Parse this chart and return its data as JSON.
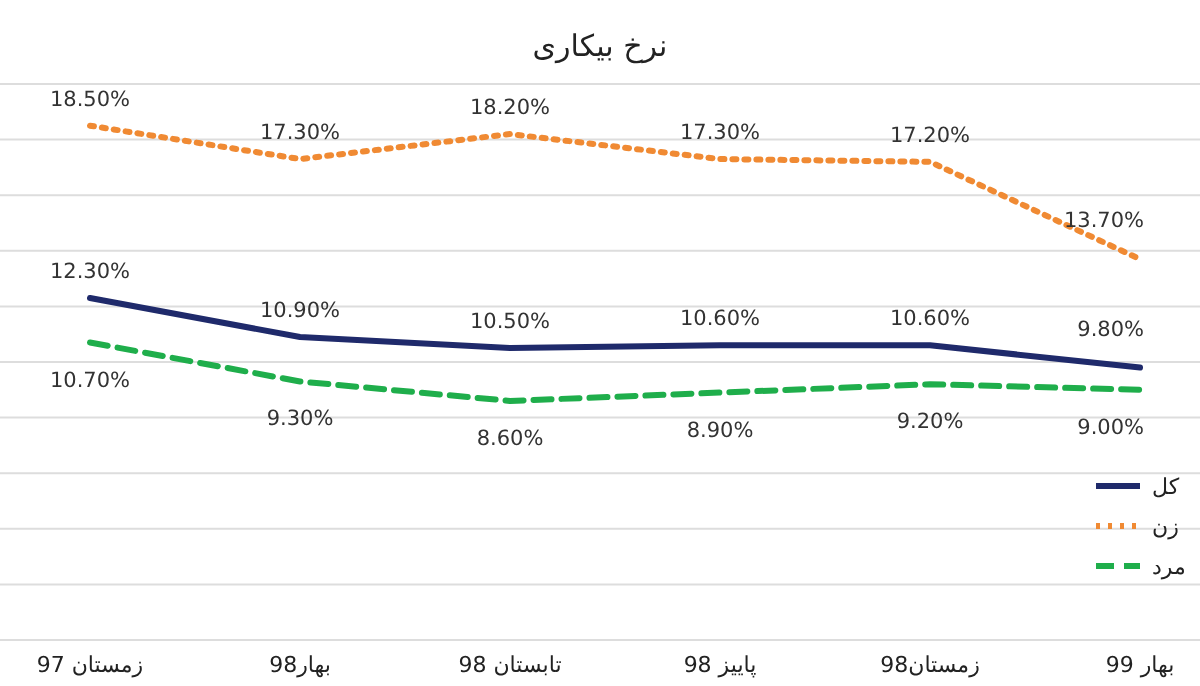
{
  "chart_data": {
    "type": "line",
    "title": "نرخ بیکاری",
    "categories": [
      "زمستان 97",
      "بهار98",
      "تابستان 98",
      "پاییز 98",
      "زمستان98",
      "بهار 99"
    ],
    "series": [
      {
        "name": "کل",
        "color": "#1f2a6b",
        "line_style": "solid",
        "values": [
          12.3,
          10.9,
          10.5,
          10.6,
          10.6,
          9.8
        ],
        "value_labels": [
          "12.30%",
          "10.90%",
          "10.50%",
          "10.60%",
          "10.60%",
          "9.80%"
        ]
      },
      {
        "name": "زن",
        "color": "#f08a33",
        "line_style": "dotted",
        "values": [
          18.5,
          17.3,
          18.2,
          17.3,
          17.2,
          13.7
        ],
        "value_labels": [
          "18.50%",
          "17.30%",
          "18.20%",
          "17.30%",
          "17.20%",
          "13.70%"
        ]
      },
      {
        "name": "مرد",
        "color": "#1fae4b",
        "line_style": "dashed",
        "values": [
          10.7,
          9.3,
          8.6,
          8.9,
          9.2,
          9.0
        ],
        "value_labels": [
          "10.70%",
          "9.30%",
          "8.60%",
          "8.90%",
          "9.20%",
          "9.00%"
        ]
      }
    ],
    "ylim": [
      0,
      20
    ],
    "yticks": [
      {
        "value": 0,
        "label": null
      },
      {
        "value": 2,
        "label": null
      },
      {
        "value": 4,
        "label": null
      },
      {
        "value": 6,
        "label": null
      },
      {
        "value": 8,
        "label": null
      },
      {
        "value": 10,
        "label": null
      },
      {
        "value": 12,
        "label": null
      },
      {
        "value": 14,
        "label": null
      },
      {
        "value": 16,
        "label": null
      },
      {
        "value": 18,
        "label": null
      },
      {
        "value": 20,
        "label": null
      }
    ],
    "tick_labels": "x",
    "grid": "y",
    "legend": "right",
    "marker": "none"
  }
}
